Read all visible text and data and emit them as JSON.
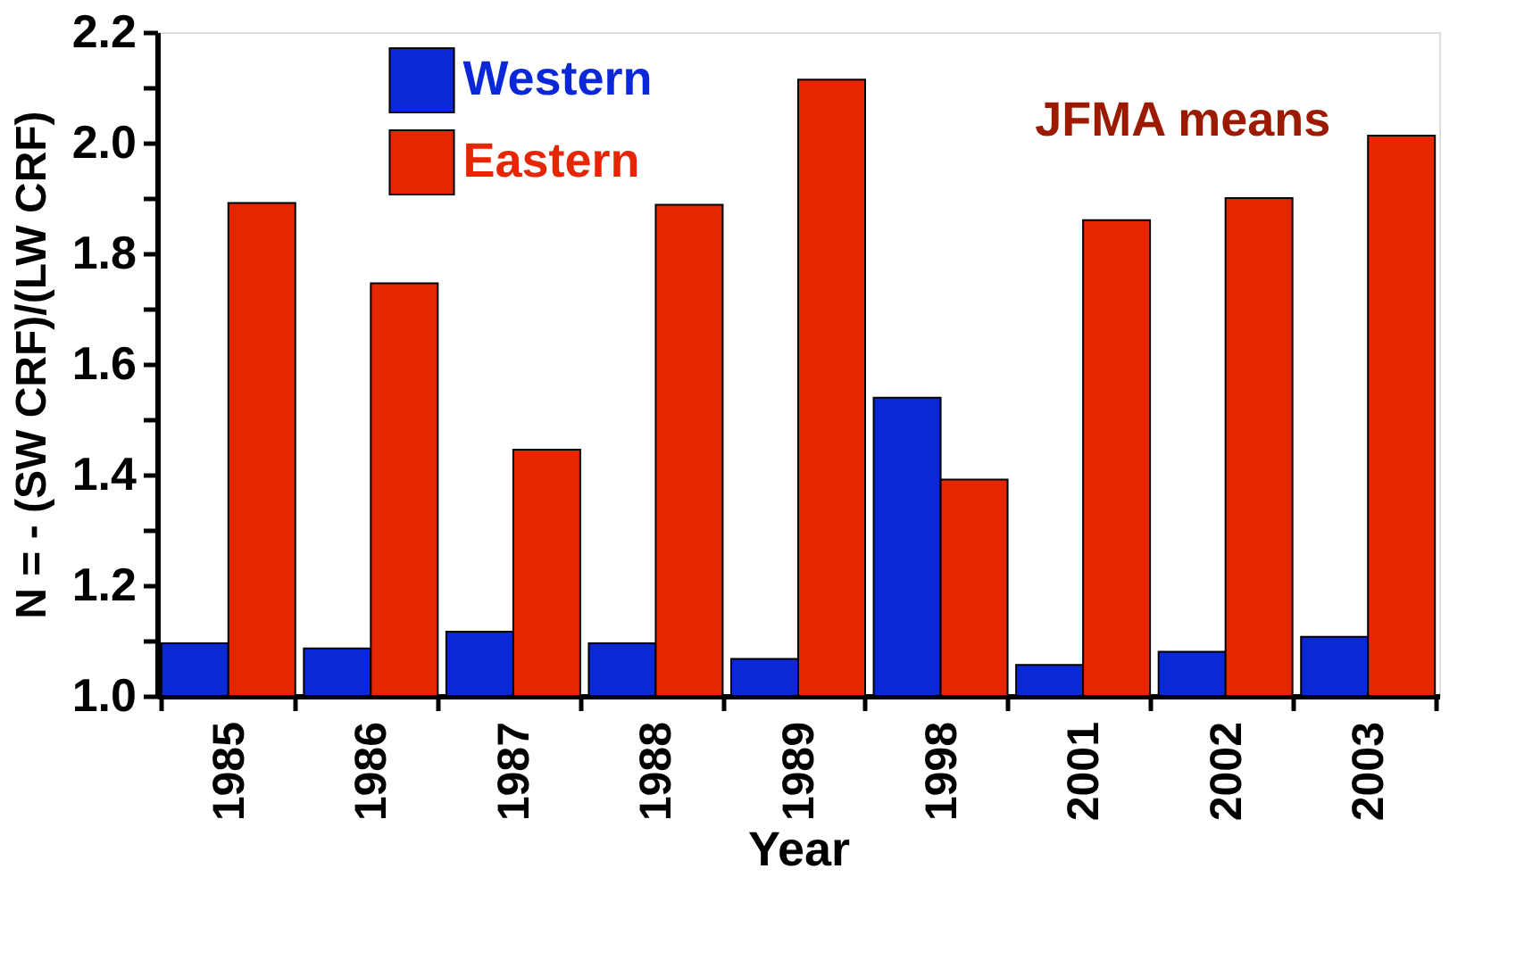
{
  "chart_data": {
    "type": "bar",
    "xlabel": "Year",
    "ylabel": "N = - (SW CRF)/(LW CRF)",
    "categories": [
      "1985",
      "1986",
      "1987",
      "1988",
      "1989",
      "1998",
      "2001",
      "2002",
      "2003"
    ],
    "series": [
      {
        "name": "Western",
        "color": "#0a28d8",
        "values": [
          1.095,
          1.086,
          1.116,
          1.095,
          1.067,
          1.539,
          1.056,
          1.08,
          1.107
        ]
      },
      {
        "name": "Eastern",
        "color": "#e62600",
        "values": [
          1.891,
          1.746,
          1.445,
          1.888,
          2.114,
          1.391,
          1.86,
          1.9,
          2.013
        ]
      }
    ],
    "ylim": [
      1.0,
      2.2
    ],
    "yticks": [
      {
        "value": 1.0,
        "label": "1.0"
      },
      {
        "value": 1.1,
        "label": null
      },
      1.2,
      {
        "value": 1.3,
        "label": null
      },
      1.4,
      {
        "value": 1.5,
        "label": null
      },
      1.6,
      {
        "value": 1.7,
        "label": null
      },
      1.8,
      {
        "value": 1.9,
        "label": null
      },
      {
        "value": 2.0,
        "label": "2.0"
      },
      {
        "value": 2.1,
        "label": null
      },
      2.2
    ],
    "annotations": [
      "JFMA means"
    ],
    "legend": "top left",
    "grid": false
  }
}
